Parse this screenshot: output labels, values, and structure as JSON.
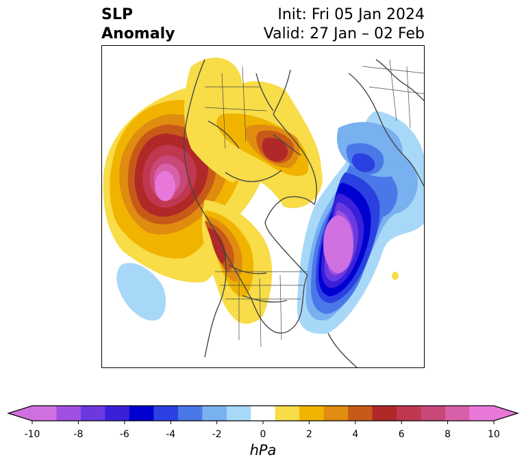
{
  "title": {
    "left_line1": "SLP",
    "left_line2": "Anomaly",
    "right_line1": "Init: Fri 05 Jan 2024",
    "right_line2": "Valid: 27 Jan – 02 Feb"
  },
  "map": {
    "projection": "north-polar-stereographic",
    "field": "sea level pressure anomaly",
    "features": [
      {
        "name": "high-aleutian-gulf-of-alaska",
        "sign": "positive",
        "peak_hPa": 10
      },
      {
        "name": "high-eastern-siberia-arctic",
        "sign": "positive",
        "peak_hPa": 6
      },
      {
        "name": "high-western-canada-west-us",
        "sign": "positive",
        "peak_hPa": 6
      },
      {
        "name": "low-north-atlantic-greenland",
        "sign": "negative",
        "peak_hPa": -10
      },
      {
        "name": "low-northern-europe",
        "sign": "negative",
        "peak_hPa": -4
      },
      {
        "name": "low-subtropical-pacific",
        "sign": "negative",
        "peak_hPa": -2
      }
    ]
  },
  "colorbar": {
    "unit": "hPa",
    "ticks": [
      "-10",
      "-8",
      "-6",
      "-4",
      "-2",
      "0",
      "2",
      "4",
      "6",
      "8",
      "10"
    ],
    "levels": [
      -10,
      -9,
      -8,
      -7,
      -6,
      -5,
      -4,
      -3,
      -2,
      -1,
      1,
      2,
      3,
      4,
      5,
      6,
      7,
      8,
      9,
      10
    ],
    "colors": [
      "#d070e0",
      "#a050e0",
      "#6a3ae0",
      "#3a20d8",
      "#0000d0",
      "#2a40e0",
      "#4a78e8",
      "#78b0f0",
      "#a8d8f8",
      "#ffffff",
      "#f8dc48",
      "#f0b400",
      "#e08c10",
      "#c85a18",
      "#b02828",
      "#c03850",
      "#c84878",
      "#d860a8",
      "#e878d8"
    ],
    "extend_low_color": "#d070e0",
    "extend_high_color": "#e878d8"
  }
}
